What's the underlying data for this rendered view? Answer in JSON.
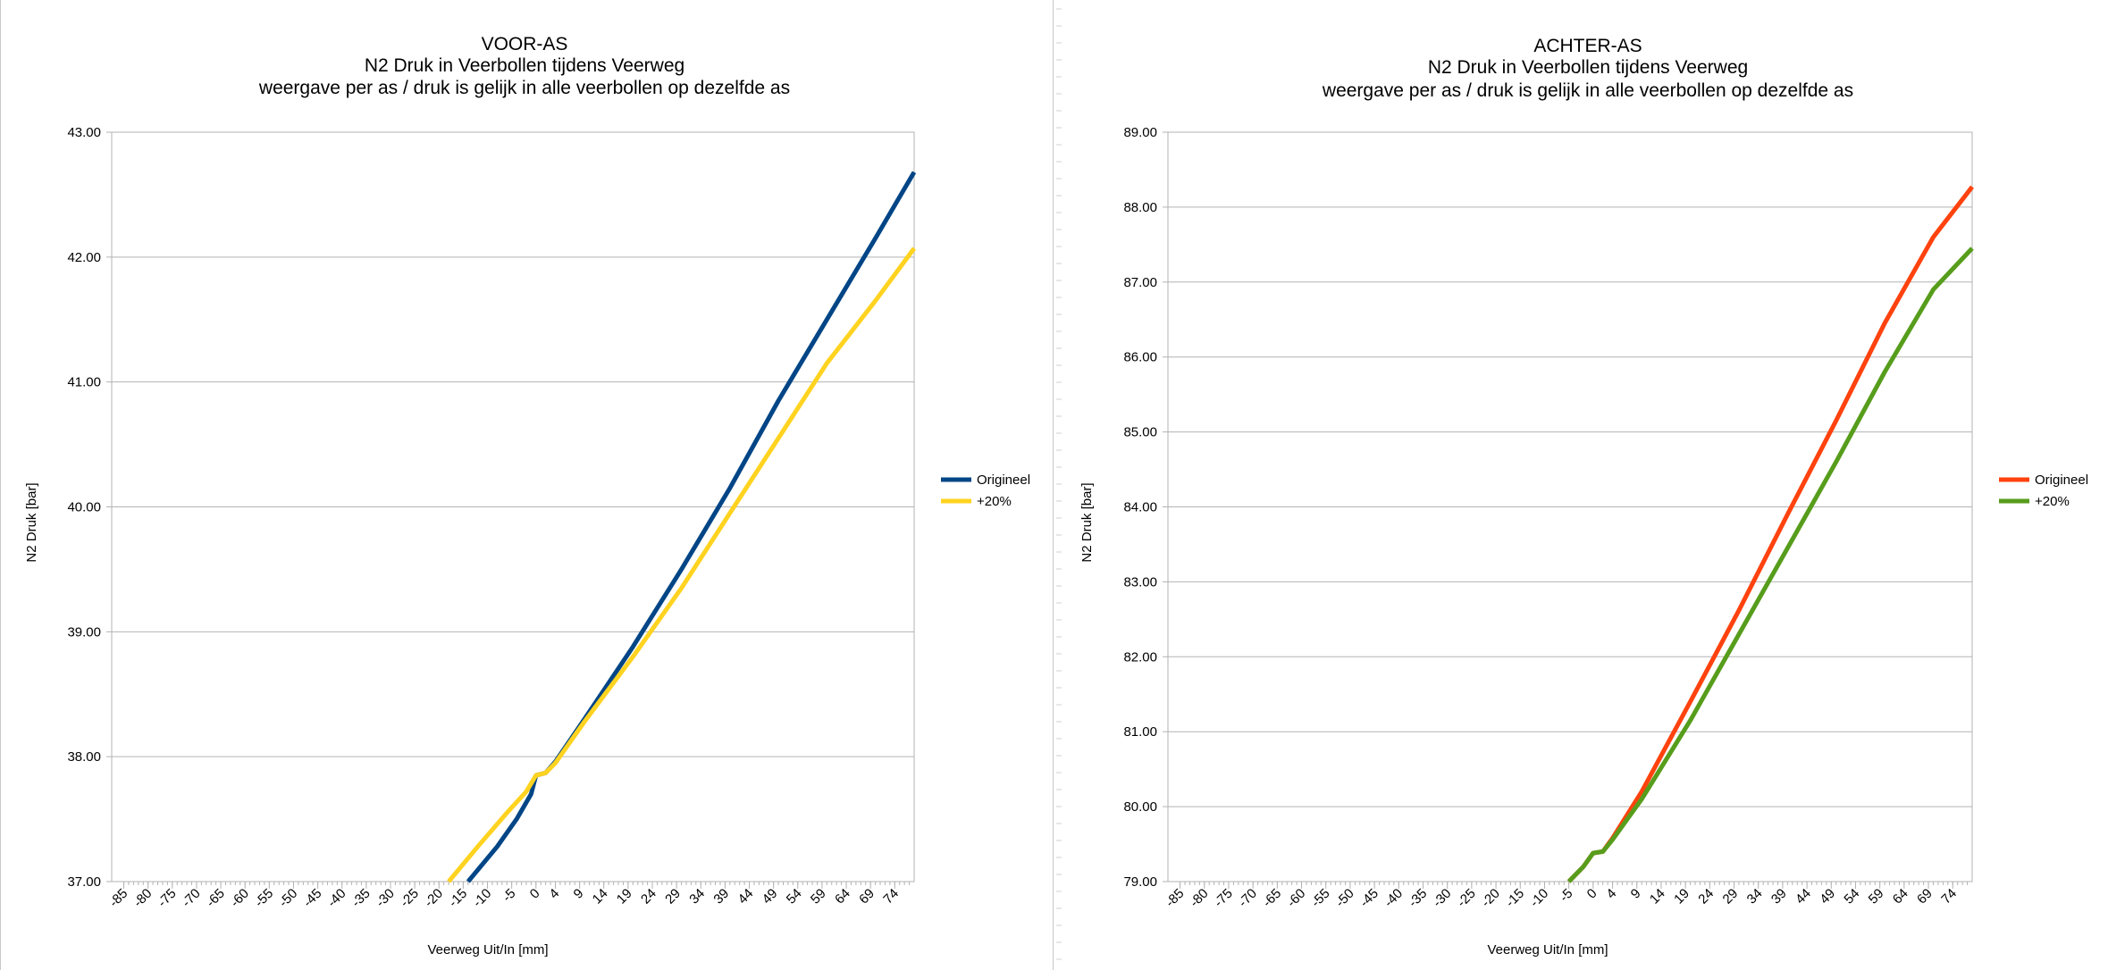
{
  "chart_data": [
    {
      "type": "line",
      "title": "VOOR-AS",
      "subtitle": "N2 Druk in Veerbollen tijdens Veerweg",
      "subtitle2": "weergave per as / druk is gelijk in alle veerbollen op dezelfde as",
      "xlabel": "Veerweg Uit/In [mm]",
      "ylabel": "N2 Druk [bar]",
      "x_tick_labels": [
        "-85",
        "-80",
        "-75",
        "-70",
        "-65",
        "-60",
        "-55",
        "-50",
        "-45",
        "-40",
        "-35",
        "-30",
        "-25",
        "-20",
        "-15",
        "-10",
        "-5",
        "0",
        "4",
        "9",
        "14",
        "19",
        "24",
        "29",
        "34",
        "39",
        "44",
        "49",
        "54",
        "59",
        "64",
        "69",
        "74"
      ],
      "y_tick_labels": [
        "37.00",
        "38.00",
        "39.00",
        "40.00",
        "41.00",
        "42.00",
        "43.00"
      ],
      "ylim": [
        37,
        43
      ],
      "xlim": [
        -87.5,
        78
      ],
      "grid": true,
      "legend_position": "right",
      "colors": {
        "Origineel": "#004586",
        "+20%": "#ffd320"
      },
      "series": [
        {
          "name": "Origineel",
          "points": [
            [
              -14,
              37.0
            ],
            [
              -8,
              37.28
            ],
            [
              -4,
              37.5
            ],
            [
              -1,
              37.7
            ],
            [
              0,
              37.85
            ],
            [
              2,
              37.87
            ],
            [
              4,
              37.96
            ],
            [
              10,
              38.3
            ],
            [
              20,
              38.88
            ],
            [
              30,
              39.5
            ],
            [
              40,
              40.15
            ],
            [
              50,
              40.85
            ],
            [
              60,
              41.5
            ],
            [
              70,
              42.15
            ],
            [
              78,
              42.68
            ]
          ]
        },
        {
          "name": "+20%",
          "points": [
            [
              -18,
              37.0
            ],
            [
              -12,
              37.28
            ],
            [
              -6,
              37.55
            ],
            [
              -2,
              37.72
            ],
            [
              0,
              37.85
            ],
            [
              2,
              37.87
            ],
            [
              4,
              37.95
            ],
            [
              10,
              38.28
            ],
            [
              20,
              38.8
            ],
            [
              30,
              39.35
            ],
            [
              40,
              39.95
            ],
            [
              50,
              40.55
            ],
            [
              60,
              41.15
            ],
            [
              70,
              41.65
            ],
            [
              78,
              42.07
            ]
          ]
        }
      ]
    },
    {
      "type": "line",
      "title": "ACHTER-AS",
      "subtitle": "N2 Druk in Veerbollen tijdens Veerweg",
      "subtitle2": "weergave per as / druk is gelijk in alle veerbollen op dezelfde as",
      "xlabel": "Veerweg Uit/In [mm]",
      "ylabel": "N2 Druk [bar]",
      "x_tick_labels": [
        "-85",
        "-80",
        "-75",
        "-70",
        "-65",
        "-60",
        "-55",
        "-50",
        "-45",
        "-40",
        "-35",
        "-30",
        "-25",
        "-20",
        "-15",
        "-10",
        "-5",
        "0",
        "4",
        "9",
        "14",
        "19",
        "24",
        "29",
        "34",
        "39",
        "44",
        "49",
        "54",
        "59",
        "64",
        "69",
        "74"
      ],
      "y_tick_labels": [
        "79.00",
        "80.00",
        "81.00",
        "82.00",
        "83.00",
        "84.00",
        "85.00",
        "86.00",
        "87.00",
        "88.00",
        "89.00"
      ],
      "ylim": [
        79,
        89
      ],
      "xlim": [
        -87.5,
        78
      ],
      "grid": true,
      "legend_position": "right",
      "colors": {
        "Origineel": "#ff420e",
        "+20%": "#579d1c"
      },
      "series": [
        {
          "name": "Origineel",
          "points": [
            [
              -5,
              79.0
            ],
            [
              -2,
              79.2
            ],
            [
              0,
              79.38
            ],
            [
              2,
              79.4
            ],
            [
              4,
              79.58
            ],
            [
              10,
              80.2
            ],
            [
              20,
              81.4
            ],
            [
              30,
              82.62
            ],
            [
              40,
              83.9
            ],
            [
              50,
              85.15
            ],
            [
              60,
              86.45
            ],
            [
              70,
              87.6
            ],
            [
              78,
              88.27
            ]
          ]
        },
        {
          "name": "+20%",
          "points": [
            [
              -5,
              79.0
            ],
            [
              -2,
              79.2
            ],
            [
              0,
              79.38
            ],
            [
              2,
              79.4
            ],
            [
              4,
              79.56
            ],
            [
              10,
              80.1
            ],
            [
              20,
              81.15
            ],
            [
              30,
              82.3
            ],
            [
              40,
              83.45
            ],
            [
              50,
              84.6
            ],
            [
              60,
              85.8
            ],
            [
              70,
              86.9
            ],
            [
              78,
              87.45
            ]
          ]
        }
      ]
    }
  ]
}
